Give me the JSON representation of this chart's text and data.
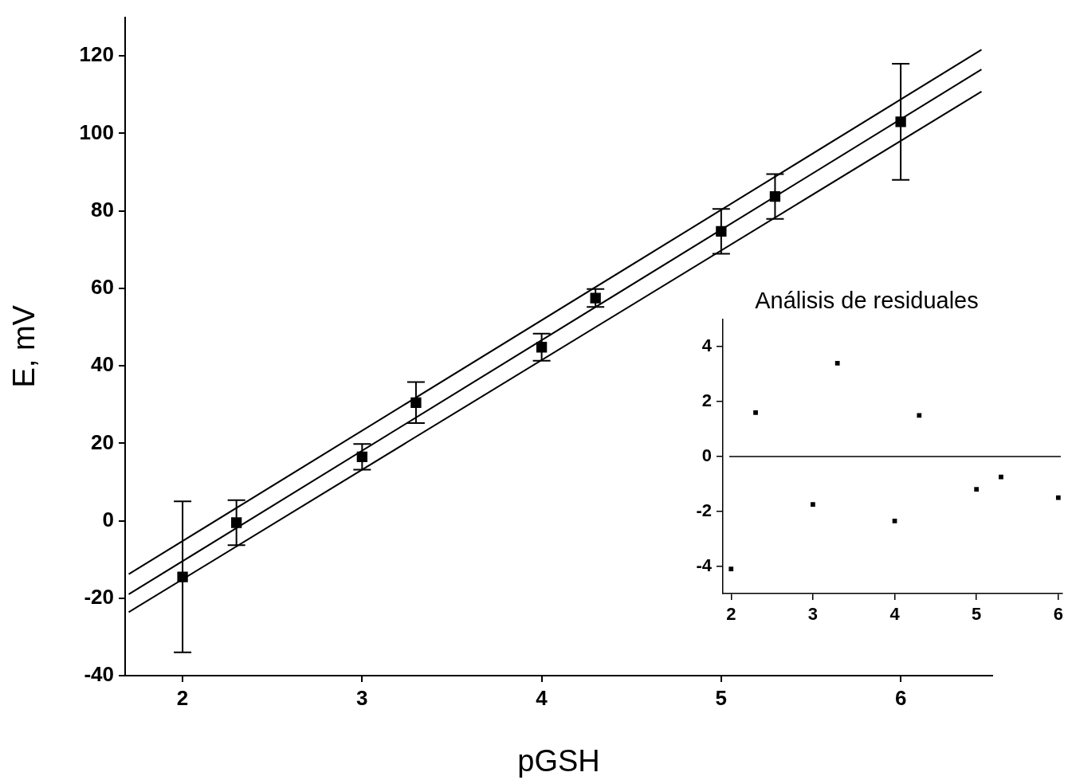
{
  "chart_data": [
    {
      "type": "scatter",
      "xlabel": "pGSH",
      "ylabel": "E, mV",
      "xlim": [
        1.68,
        6.51
      ],
      "ylim": [
        -40,
        130
      ],
      "xticks": [
        2,
        3,
        4,
        5,
        6
      ],
      "yticks": [
        -40,
        -20,
        0,
        20,
        40,
        60,
        80,
        100,
        120
      ],
      "marker": "square",
      "series": [
        {
          "color": "#000000",
          "x": [
            2,
            2.3,
            3,
            3.3,
            4,
            4.3,
            5,
            5.3,
            6
          ],
          "values": [
            -14.5,
            -0.5,
            16.5,
            30.5,
            44.8,
            57.5,
            74.7,
            83.7,
            103
          ],
          "errors": [
            19.5,
            5.8,
            3.3,
            5.3,
            3.5,
            2.3,
            5.8,
            5.8,
            15
          ]
        },
        {
          "type": "line",
          "color": "#000000",
          "marker": "none",
          "x": [
            1.7,
            6.45
          ],
          "values": [
            -13.8,
            121.6
          ]
        },
        {
          "type": "line",
          "color": "#000000",
          "marker": "none",
          "x": [
            1.7,
            6.45
          ],
          "values": [
            -19,
            116.5
          ]
        },
        {
          "type": "line",
          "color": "#000000",
          "marker": "none",
          "x": [
            1.7,
            6.45
          ],
          "values": [
            -23.6,
            110.8
          ]
        }
      ]
    },
    {
      "type": "scatter",
      "title": "Análisis de residuales",
      "xlim": [
        1.9,
        6.05
      ],
      "ylim": [
        -5,
        5
      ],
      "xticks": [
        2,
        3,
        4,
        5,
        6
      ],
      "yticks": [
        -4,
        -2,
        0,
        2,
        4
      ],
      "marker": "square",
      "ref_lines": [
        {
          "axis": "y",
          "value": 0,
          "color": "#000000"
        }
      ],
      "series": [
        {
          "color": "#000000",
          "x": [
            2,
            2.3,
            3,
            3.3,
            4,
            4.3,
            5,
            5.3,
            6
          ],
          "values": [
            -4.1,
            1.6,
            -1.75,
            3.4,
            -2.35,
            1.5,
            -1.2,
            -0.75,
            -1.5
          ]
        }
      ]
    }
  ]
}
